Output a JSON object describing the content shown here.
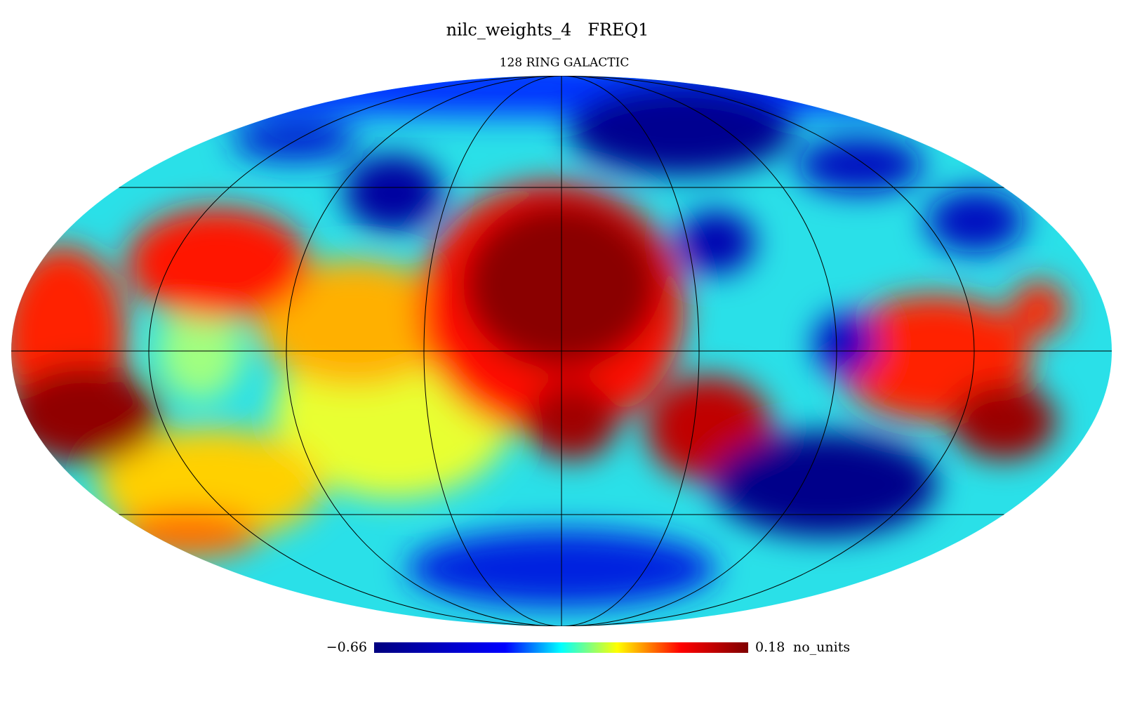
{
  "title": "nilc_weights_4   FREQ1",
  "subtitle": "128 RING GALACTIC",
  "colorbar": {
    "min": {
      "value": -0.66,
      "label": "−0.66"
    },
    "max": 0.18,
    "unit": "no_units"
  }
}
